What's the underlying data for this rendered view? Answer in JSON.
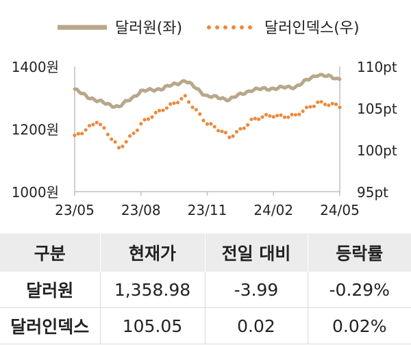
{
  "chart_data": {
    "type": "line",
    "legend": {
      "placement": "top",
      "entries": [
        "달러원(좌)",
        "달러인덱스(우)"
      ]
    },
    "x_axis": {
      "tick_labels": [
        "23/05",
        "23/08",
        "23/11",
        "24/02",
        "24/05"
      ],
      "range": [
        "2023-05",
        "2024-05"
      ]
    },
    "y_left": {
      "tick_labels": [
        "1400원",
        "1200원",
        "1000원"
      ],
      "ticks": [
        1400,
        1200,
        1000
      ],
      "range": [
        1000,
        1400
      ]
    },
    "y_right": {
      "tick_labels": [
        "110pt",
        "105pt",
        "100pt",
        "95pt"
      ],
      "ticks": [
        110,
        105,
        100,
        95
      ],
      "range": [
        95,
        110
      ]
    },
    "grid": false,
    "series": [
      {
        "name": "달러원(좌)",
        "axis": "left",
        "style": "solid",
        "color": "#b8a78a",
        "x": [
          "2023-05",
          "2023-06",
          "2023-07",
          "2023-08",
          "2023-09",
          "2023-10",
          "2023-11",
          "2023-12",
          "2024-01",
          "2024-02",
          "2024-03",
          "2024-04",
          "2024-05"
        ],
        "values": [
          1325,
          1290,
          1270,
          1320,
          1330,
          1355,
          1305,
          1295,
          1325,
          1330,
          1335,
          1375,
          1359
        ]
      },
      {
        "name": "달러인덱스(우)",
        "axis": "right",
        "style": "dotted",
        "color": "#ec8a3c",
        "x": [
          "2023-05",
          "2023-06",
          "2023-07",
          "2023-08",
          "2023-09",
          "2023-10",
          "2023-11",
          "2023-12",
          "2024-01",
          "2024-02",
          "2024-03",
          "2024-04",
          "2024-05"
        ],
        "values": [
          101.5,
          103.5,
          100.2,
          103.0,
          105.0,
          106.2,
          103.3,
          101.5,
          103.5,
          104.2,
          104.0,
          105.8,
          105.1
        ]
      }
    ]
  },
  "table": {
    "headers": [
      "구분",
      "현재가",
      "전일 대비",
      "등락률"
    ],
    "rows": [
      {
        "name": "달러원",
        "price": "1,358.98",
        "change": "-3.99",
        "rate": "-0.29%"
      },
      {
        "name": "달러인덱스",
        "price": "105.05",
        "change": "0.02",
        "rate": "0.02%"
      }
    ]
  }
}
